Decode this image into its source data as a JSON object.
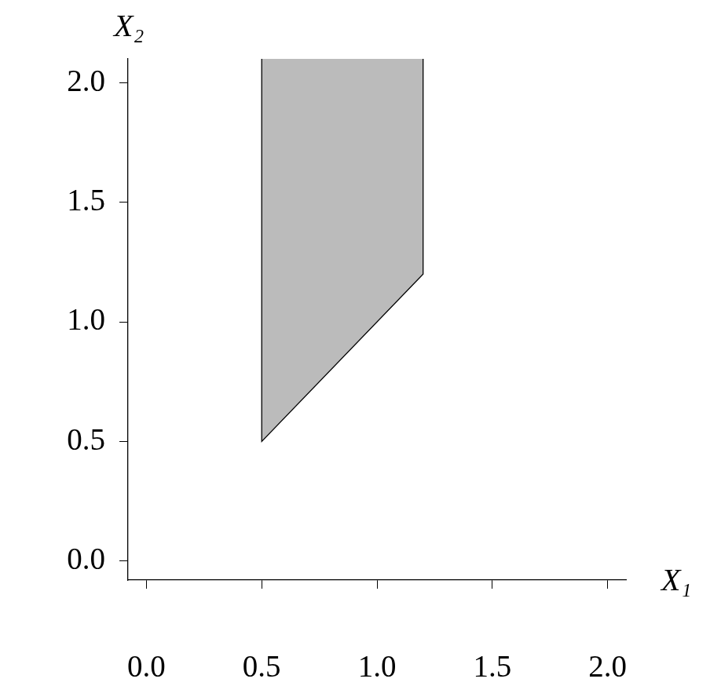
{
  "chart_data": {
    "type": "area",
    "xlabel": "X₁",
    "ylabel": "X₂",
    "x": [
      0.5,
      0.5,
      1.2,
      1.2
    ],
    "values": [
      2.1,
      0.5,
      1.2,
      2.1
    ],
    "color": "#bbbbbb",
    "xlim": [
      -0.08,
      2.08
    ],
    "ylim": [
      -0.08,
      2.1
    ],
    "xticks": [
      {
        "value": 0,
        "label": "0.0"
      },
      {
        "value": 0.5,
        "label": "0.5"
      },
      {
        "value": 1,
        "label": "1.0"
      },
      {
        "value": 1.5,
        "label": "1.5"
      },
      {
        "value": 2,
        "label": "2.0"
      }
    ],
    "yticks": [
      {
        "value": 0,
        "label": "0.0"
      },
      {
        "value": 0.5,
        "label": "0.5"
      },
      {
        "value": 1,
        "label": "1.0"
      },
      {
        "value": 1.5,
        "label": "1.5"
      },
      {
        "value": 2,
        "label": "2.0"
      }
    ],
    "grid": false
  }
}
